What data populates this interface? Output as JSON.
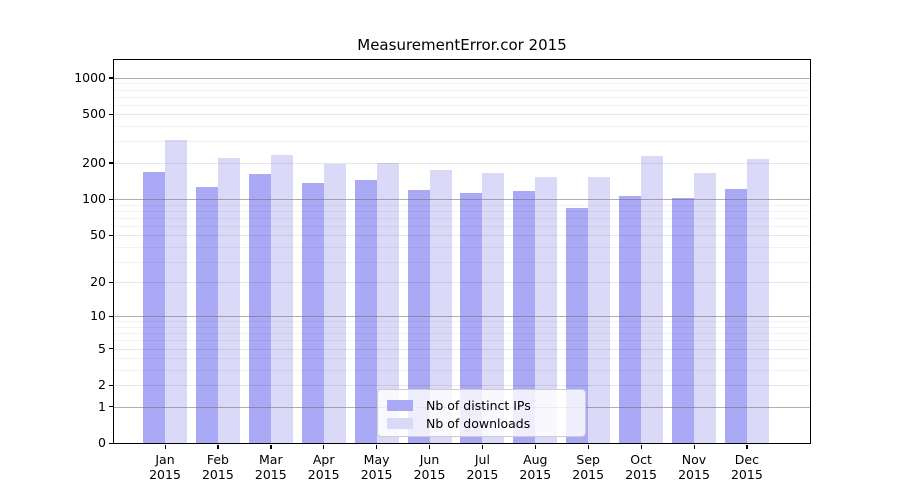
{
  "chart_data": {
    "type": "bar",
    "title": "MeasurementError.cor 2015",
    "categories": [
      "Jan",
      "Feb",
      "Mar",
      "Apr",
      "May",
      "Jun",
      "Jul",
      "Aug",
      "Sep",
      "Oct",
      "Nov",
      "Dec"
    ],
    "x_sublabel": "2015",
    "series": [
      {
        "name": "Nb of distinct IPs",
        "color": "#a9a9f5",
        "values": [
          169,
          125,
          160,
          137,
          143,
          119,
          112,
          116,
          84,
          107,
          103,
          121
        ]
      },
      {
        "name": "Nb of downloads",
        "color": "#dadaf8",
        "values": [
          308,
          220,
          232,
          194,
          198,
          175,
          164,
          153,
          152,
          229,
          163,
          213
        ]
      }
    ],
    "yscale": "log1p",
    "yticks": [
      0,
      1,
      2,
      5,
      10,
      20,
      50,
      100,
      200,
      500,
      1000
    ],
    "ylim": [
      0,
      1400
    ],
    "grid": true,
    "legend_position": "bottom-center",
    "colors": {
      "spine": "#000000",
      "decade_gridline": "#b3b3b3",
      "minor_gridline": "#f0f0f0"
    }
  }
}
